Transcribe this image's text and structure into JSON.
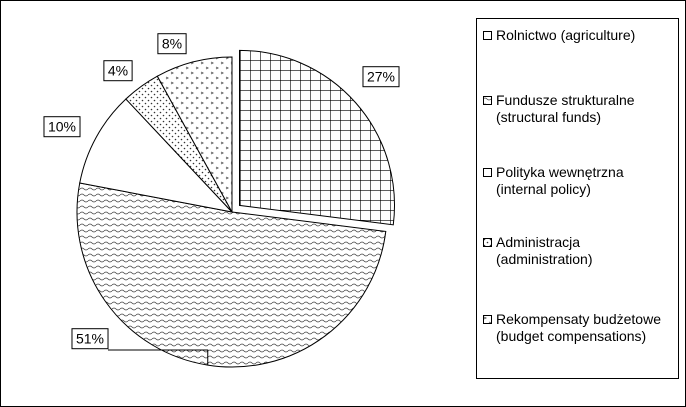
{
  "chart_data": {
    "type": "pie",
    "categories": [
      "Rolnictwo (agriculture)",
      "Fundusze strukturalne (structural funds)",
      "Polityka wewnętrzna (internal policy)",
      "Administracja (administration)",
      "Rekompensaty budżetowe (budget compensations)"
    ],
    "values": [
      27,
      51,
      10,
      4,
      8
    ],
    "value_labels": [
      "27%",
      "51%",
      "10%",
      "4%",
      "8%"
    ]
  }
}
